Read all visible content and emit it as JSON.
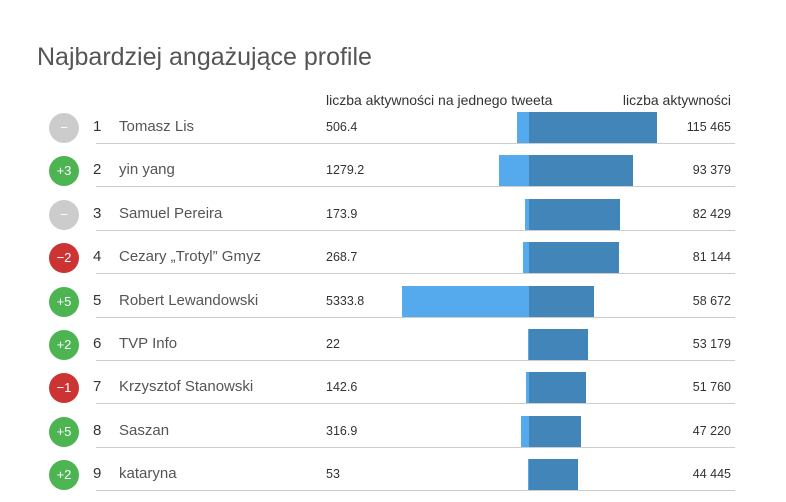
{
  "title": "Najbardziej angażujące profile",
  "chart_data": {
    "type": "bar",
    "columns": {
      "per_tweet": "liczba aktywności na jednego tweeta",
      "total": "liczba aktywności"
    },
    "colors": {
      "per_tweet": "#55aaee",
      "total": "#4285b9",
      "up": "#4cb450",
      "down": "#cc3333",
      "same": "#cccccc"
    },
    "rows": [
      {
        "change": "−",
        "rank": "1",
        "name": "Tomasz Lis",
        "per_tweet": 506.4,
        "per_tweet_label": "506.4",
        "total": 115465,
        "total_label": "115 465"
      },
      {
        "change": "+3",
        "rank": "2",
        "name": "yin yang",
        "per_tweet": 1279.2,
        "per_tweet_label": "1279.2",
        "total": 93379,
        "total_label": "93 379"
      },
      {
        "change": "−",
        "rank": "3",
        "name": "Samuel Pereira",
        "per_tweet": 173.9,
        "per_tweet_label": "173.9",
        "total": 82429,
        "total_label": "82 429"
      },
      {
        "change": "−2",
        "rank": "4",
        "name": "Cezary „Trotyl” Gmyz",
        "per_tweet": 268.7,
        "per_tweet_label": "268.7",
        "total": 81144,
        "total_label": "81 144"
      },
      {
        "change": "+5",
        "rank": "5",
        "name": "Robert Lewandowski",
        "per_tweet": 5333.8,
        "per_tweet_label": "5333.8",
        "total": 58672,
        "total_label": "58 672"
      },
      {
        "change": "+2",
        "rank": "6",
        "name": "TVP Info",
        "per_tweet": 22,
        "per_tweet_label": "22",
        "total": 53179,
        "total_label": "53 179"
      },
      {
        "change": "−1",
        "rank": "7",
        "name": "Krzysztof Stanowski",
        "per_tweet": 142.6,
        "per_tweet_label": "142.6",
        "total": 51760,
        "total_label": "51 760"
      },
      {
        "change": "+5",
        "rank": "8",
        "name": "Saszan",
        "per_tweet": 316.9,
        "per_tweet_label": "316.9",
        "total": 47220,
        "total_label": "47 220"
      },
      {
        "change": "+2",
        "rank": "9",
        "name": "kataryna",
        "per_tweet": 53,
        "per_tweet_label": "53",
        "total": 44445,
        "total_label": "44 445"
      }
    ]
  }
}
